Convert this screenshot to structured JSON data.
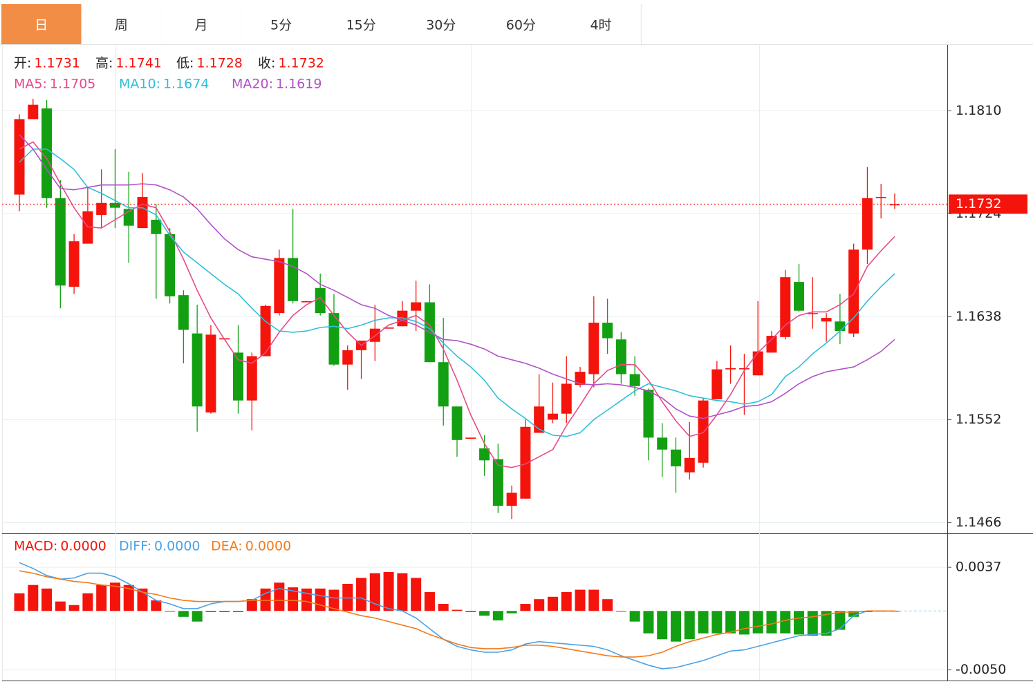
{
  "tabs": [
    "日",
    "周",
    "月",
    "5分",
    "15分",
    "30分",
    "60分",
    "4时"
  ],
  "active_tab": 0,
  "chart_data": [
    {
      "type": "candlestick",
      "ohlc_labels": [
        "开:",
        "高:",
        "低:",
        "收:"
      ],
      "open": [
        1.174,
        1.1803,
        1.1812,
        1.1737,
        1.1663,
        1.1699,
        1.1723,
        1.1733,
        1.1728,
        1.1712,
        1.1719,
        1.1707,
        1.1656,
        1.1624,
        1.1558,
        1.1619,
        1.1608,
        1.1568,
        1.1605,
        1.1641,
        1.1687,
        1.165,
        1.1662,
        1.1641,
        1.1598,
        1.161,
        1.1617,
        1.1628,
        1.163,
        1.1643,
        1.165,
        1.16,
        1.1563,
        1.1536,
        1.1528,
        1.1519,
        1.148,
        1.1486,
        1.1541,
        1.1552,
        1.1557,
        1.1581,
        1.159,
        1.1633,
        1.1619,
        1.159,
        1.1577,
        1.1537,
        1.1527,
        1.1508,
        1.1516,
        1.1569,
        1.1594,
        1.1594,
        1.1589,
        1.1608,
        1.1621,
        1.1667,
        1.1641,
        1.1634,
        1.1634,
        1.1624,
        1.1694,
        1.1737,
        1.1731
      ],
      "high": [
        1.1807,
        1.182,
        1.1819,
        1.1752,
        1.1707,
        1.1746,
        1.1761,
        1.1778,
        1.1759,
        1.1758,
        1.1732,
        1.1712,
        1.166,
        1.1648,
        1.1631,
        1.162,
        1.1631,
        1.1608,
        1.1648,
        1.1694,
        1.1728,
        1.1651,
        1.1674,
        1.1657,
        1.1614,
        1.1618,
        1.1648,
        1.1629,
        1.1651,
        1.1668,
        1.1665,
        1.1637,
        1.1563,
        1.1537,
        1.1539,
        1.1532,
        1.1497,
        1.1552,
        1.159,
        1.1583,
        1.1605,
        1.1596,
        1.1655,
        1.1653,
        1.1625,
        1.1605,
        1.1578,
        1.1549,
        1.1537,
        1.155,
        1.157,
        1.1601,
        1.1614,
        1.1607,
        1.1651,
        1.1626,
        1.1677,
        1.1682,
        1.1671,
        1.1641,
        1.1657,
        1.1699,
        1.1763,
        1.1749,
        1.1741
      ],
      "low": [
        1.1726,
        1.1803,
        1.1729,
        1.1645,
        1.1657,
        1.1699,
        1.1712,
        1.1712,
        1.1683,
        1.1712,
        1.1653,
        1.1649,
        1.1599,
        1.1542,
        1.1557,
        1.1619,
        1.1557,
        1.1543,
        1.1605,
        1.1639,
        1.1649,
        1.165,
        1.1639,
        1.1597,
        1.1577,
        1.1586,
        1.1601,
        1.1628,
        1.163,
        1.1626,
        1.16,
        1.1547,
        1.1521,
        1.1536,
        1.1505,
        1.1474,
        1.1469,
        1.1486,
        1.1541,
        1.1549,
        1.1549,
        1.1579,
        1.1579,
        1.1607,
        1.1582,
        1.1572,
        1.1518,
        1.1504,
        1.1491,
        1.1502,
        1.1512,
        1.1569,
        1.1582,
        1.1556,
        1.1589,
        1.1608,
        1.1619,
        1.1642,
        1.1628,
        1.1617,
        1.1615,
        1.1621,
        1.1682,
        1.172,
        1.1728
      ],
      "close": [
        1.1803,
        1.1815,
        1.1737,
        1.1664,
        1.1701,
        1.1726,
        1.1733,
        1.1729,
        1.1714,
        1.1738,
        1.1707,
        1.1655,
        1.1627,
        1.1563,
        1.1623,
        1.162,
        1.1568,
        1.1605,
        1.1647,
        1.1687,
        1.1651,
        1.1651,
        1.1641,
        1.1598,
        1.161,
        1.1618,
        1.1628,
        1.1629,
        1.1643,
        1.165,
        1.16,
        1.1563,
        1.1535,
        1.1537,
        1.1518,
        1.148,
        1.1491,
        1.1546,
        1.1563,
        1.1557,
        1.1582,
        1.1592,
        1.1633,
        1.162,
        1.159,
        1.158,
        1.1537,
        1.1527,
        1.1513,
        1.152,
        1.1568,
        1.1594,
        1.1595,
        1.1595,
        1.1609,
        1.1622,
        1.1671,
        1.1643,
        1.1641,
        1.1637,
        1.1626,
        1.1694,
        1.1737,
        1.1738,
        1.1732
      ],
      "up_color": "#f5140c",
      "down_color": "#12a012",
      "ylim": [
        1.1457,
        1.1865
      ],
      "yticks": [
        {
          "value": 1.181,
          "label": "1.1810"
        },
        1.1724,
        1.1638,
        1.1552,
        1.1466
      ],
      "grid": true,
      "last_price_line": true,
      "series": [
        {
          "name": "MA5:",
          "color": "#e84a8a",
          "values": [
            1.1778,
            1.1784,
            1.177,
            1.1749,
            1.1729,
            1.1713,
            1.1712,
            1.1719,
            1.1726,
            1.1732,
            1.1729,
            1.1709,
            1.1686,
            1.166,
            1.1637,
            1.1619,
            1.1602,
            1.1599,
            1.1608,
            1.1625,
            1.1639,
            1.1648,
            1.1654,
            1.1639,
            1.1625,
            1.1614,
            1.1622,
            1.1631,
            1.1635,
            1.1639,
            1.1631,
            1.1611,
            1.1585,
            1.1556,
            1.1532,
            1.1514,
            1.1512,
            1.1515,
            1.1521,
            1.1527,
            1.1547,
            1.1564,
            1.1582,
            1.1593,
            1.1598,
            1.1598,
            1.1585,
            1.1567,
            1.1551,
            1.1538,
            1.1541,
            1.1556,
            1.1573,
            1.1593,
            1.1608,
            1.1619,
            1.1631,
            1.1639,
            1.1642,
            1.1642,
            1.1648,
            1.1657,
            1.168,
            1.1693,
            1.1705
          ]
        },
        {
          "name": "MA10:",
          "color": "#2ec0d8",
          "values": [
            1.1767,
            1.1778,
            1.1778,
            1.177,
            1.1761,
            1.1746,
            1.1741,
            1.1735,
            1.1729,
            1.1729,
            1.1723,
            1.1706,
            1.1692,
            1.1683,
            1.1674,
            1.1665,
            1.1657,
            1.1645,
            1.1634,
            1.1626,
            1.1625,
            1.1626,
            1.1629,
            1.163,
            1.1628,
            1.1631,
            1.1635,
            1.1637,
            1.1637,
            1.1634,
            1.1628,
            1.1616,
            1.1605,
            1.1596,
            1.1585,
            1.157,
            1.1561,
            1.1553,
            1.1544,
            1.1539,
            1.1538,
            1.1541,
            1.1552,
            1.156,
            1.1568,
            1.1576,
            1.1582,
            1.1579,
            1.1576,
            1.1572,
            1.157,
            1.1568,
            1.1567,
            1.1565,
            1.1567,
            1.1573,
            1.1588,
            1.1596,
            1.1607,
            1.1616,
            1.1626,
            1.1637,
            1.1651,
            1.1663,
            1.1674
          ]
        },
        {
          "name": "MA20:",
          "color": "#b152c6",
          "values": [
            1.179,
            1.1778,
            1.1761,
            1.1745,
            1.1744,
            1.1746,
            1.1748,
            1.1748,
            1.1748,
            1.1749,
            1.1748,
            1.1744,
            1.1738,
            1.1728,
            1.1715,
            1.1703,
            1.1694,
            1.1688,
            1.1686,
            1.1684,
            1.168,
            1.1674,
            1.1665,
            1.166,
            1.1654,
            1.1648,
            1.1645,
            1.1639,
            1.1635,
            1.1631,
            1.1625,
            1.1619,
            1.1618,
            1.1615,
            1.1611,
            1.1605,
            1.1602,
            1.1599,
            1.1595,
            1.159,
            1.1586,
            1.1582,
            1.1581,
            1.1582,
            1.1581,
            1.1579,
            1.1576,
            1.157,
            1.1561,
            1.1555,
            1.1553,
            1.1556,
            1.1559,
            1.1563,
            1.1564,
            1.1567,
            1.1574,
            1.1582,
            1.1588,
            1.1592,
            1.1594,
            1.1596,
            1.1602,
            1.1609,
            1.1619
          ]
        }
      ]
    },
    {
      "type": "macd",
      "ylim": [
        -0.0059,
        0.0064
      ],
      "yticks": [
        0.0037,
        {
          "value": -0.005,
          "label": "-0.0050"
        }
      ],
      "grid": true,
      "series": [
        {
          "name": "MACD:",
          "kind": "bar",
          "color": "#f5140c",
          "up_color": "#f5140c",
          "down_color": "#12a012",
          "values": [
            0.0015,
            0.0022,
            0.0019,
            0.0008,
            0.0005,
            0.0015,
            0.0022,
            0.0024,
            0.0022,
            0.0019,
            0.0009,
            0,
            -0.0005,
            -0.0009,
            -0.0001,
            -0.0001,
            -0.0001,
            0.001,
            0.0019,
            0.0024,
            0.002,
            0.0019,
            0.0019,
            0.0018,
            0.0023,
            0.0028,
            0.0032,
            0.0033,
            0.0032,
            0.0028,
            0.0016,
            0.0006,
            0.0001,
            -0.0001,
            -0.0004,
            -0.0008,
            -0.0002,
            0.0006,
            0.001,
            0.0012,
            0.0016,
            0.0018,
            0.0018,
            0.001,
            0,
            -0.0009,
            -0.0019,
            -0.0024,
            -0.0026,
            -0.0024,
            -0.0019,
            -0.0019,
            -0.0019,
            -0.002,
            -0.0019,
            -0.0019,
            -0.0019,
            -0.002,
            -0.0021,
            -0.0021,
            -0.0016,
            -0.0005,
            -0.0001,
            0,
            0
          ],
          "value_labels": [
            null,
            null,
            null,
            null,
            null,
            null,
            null,
            null,
            null,
            null,
            null,
            null,
            null,
            null,
            null,
            null,
            null,
            null,
            null,
            null,
            null,
            null,
            null,
            null,
            null,
            null,
            null,
            null,
            null,
            null,
            null,
            null,
            null,
            null,
            null,
            null,
            null,
            null,
            null,
            null,
            null,
            null,
            null,
            null,
            null,
            null,
            null,
            null,
            null,
            null,
            null,
            null,
            null,
            null,
            null,
            null,
            null,
            null,
            null,
            null,
            null,
            null,
            null,
            null,
            "0.0000"
          ]
        },
        {
          "name": "DIFF:",
          "kind": "line",
          "color": "#4aa2e6",
          "values": [
            0.0041,
            0.0036,
            0.003,
            0.0027,
            0.0028,
            0.0032,
            0.0032,
            0.0029,
            0.0023,
            0.0016,
            0.0009,
            0.0006,
            0.0002,
            0.0002,
            0.0006,
            0.0008,
            0.0008,
            0.0009,
            0.0015,
            0.0019,
            0.0017,
            0.0015,
            0.0013,
            0.0011,
            0.0011,
            0.0011,
            0.0006,
            0.0002,
            0,
            -0.0006,
            -0.0015,
            -0.0024,
            -0.003,
            -0.0033,
            -0.0035,
            -0.0035,
            -0.0033,
            -0.0028,
            -0.0026,
            -0.0027,
            -0.0028,
            -0.0029,
            -0.003,
            -0.0033,
            -0.0038,
            -0.0042,
            -0.0046,
            -0.0049,
            -0.0048,
            -0.0045,
            -0.0042,
            -0.0038,
            -0.0034,
            -0.0033,
            -0.003,
            -0.0027,
            -0.0024,
            -0.0021,
            -0.002,
            -0.0019,
            -0.0015,
            -0.0004,
            0,
            0,
            0
          ],
          "value_labels": [
            null,
            null,
            null,
            null,
            null,
            null,
            null,
            null,
            null,
            null,
            null,
            null,
            null,
            null,
            null,
            null,
            null,
            null,
            null,
            null,
            null,
            null,
            null,
            null,
            null,
            null,
            null,
            null,
            null,
            null,
            null,
            null,
            null,
            null,
            null,
            null,
            null,
            null,
            null,
            null,
            null,
            null,
            null,
            null,
            null,
            null,
            null,
            null,
            null,
            null,
            null,
            null,
            null,
            null,
            null,
            null,
            null,
            null,
            null,
            null,
            null,
            null,
            null,
            null,
            "0.0000"
          ]
        },
        {
          "name": "DEA:",
          "kind": "line",
          "color": "#f47a1a",
          "values": [
            0.0034,
            0.0032,
            0.0029,
            0.0027,
            0.0025,
            0.0024,
            0.0022,
            0.0021,
            0.0019,
            0.0016,
            0.0014,
            0.0011,
            0.0009,
            0.0008,
            0.0008,
            0.0008,
            0.0008,
            0.0009,
            0.0009,
            0.0009,
            0.0009,
            0.0008,
            0.0005,
            0.0002,
            -0.0001,
            -0.0004,
            -0.0006,
            -0.0009,
            -0.0012,
            -0.0015,
            -0.002,
            -0.0024,
            -0.0028,
            -0.0031,
            -0.0032,
            -0.0032,
            -0.0031,
            -0.0029,
            -0.0029,
            -0.003,
            -0.0032,
            -0.0034,
            -0.0036,
            -0.0038,
            -0.0039,
            -0.0039,
            -0.0038,
            -0.0035,
            -0.003,
            -0.0026,
            -0.0023,
            -0.002,
            -0.0018,
            -0.0015,
            -0.0013,
            -0.0011,
            -0.0008,
            -0.0006,
            -0.0005,
            -0.0003,
            -0.0001,
            -0.0001,
            0,
            0,
            0
          ],
          "value_labels": [
            null,
            null,
            null,
            null,
            null,
            null,
            null,
            null,
            null,
            null,
            null,
            null,
            null,
            null,
            null,
            null,
            null,
            null,
            null,
            null,
            null,
            null,
            null,
            null,
            null,
            null,
            null,
            null,
            null,
            null,
            null,
            null,
            null,
            null,
            null,
            null,
            null,
            null,
            null,
            null,
            null,
            null,
            null,
            null,
            null,
            null,
            null,
            null,
            null,
            null,
            null,
            null,
            null,
            null,
            null,
            null,
            null,
            null,
            null,
            null,
            null,
            null,
            null,
            null,
            "0.0000"
          ]
        }
      ]
    }
  ]
}
